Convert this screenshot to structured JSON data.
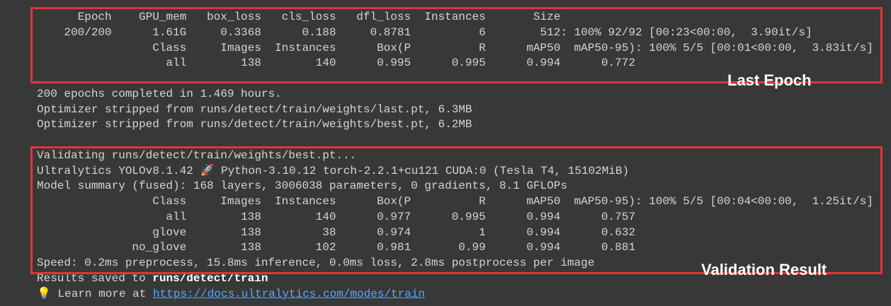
{
  "last_epoch": {
    "lines": [
      "      Epoch    GPU_mem   box_loss   cls_loss   dfl_loss  Instances       Size",
      "    200/200      1.61G     0.3368      0.188     0.8781          6        512: 100% 92/92 [00:23<00:00,  3.90it/s]",
      "                 Class     Images  Instances      Box(P          R      mAP50  mAP50-95): 100% 5/5 [00:01<00:00,  3.83it/s]",
      "                   all        138        140      0.995      0.995      0.994      0.772"
    ]
  },
  "summary": {
    "lines": [
      "200 epochs completed in 1.469 hours.",
      "Optimizer stripped from runs/detect/train/weights/last.pt, 6.3MB",
      "Optimizer stripped from runs/detect/train/weights/best.pt, 6.2MB"
    ]
  },
  "validation": {
    "lines": [
      "Validating runs/detect/train/weights/best.pt...",
      "Ultralytics YOLOv8.1.42 🚀 Python-3.10.12 torch-2.2.1+cu121 CUDA:0 (Tesla T4, 15102MiB)",
      "Model summary (fused): 168 layers, 3006038 parameters, 0 gradients, 8.1 GFLOPs",
      "                 Class     Images  Instances      Box(P          R      mAP50  mAP50-95): 100% 5/5 [00:04<00:00,  1.25it/s]",
      "                   all        138        140      0.977      0.995      0.994      0.757",
      "                 glove        138         38      0.974          1      0.994      0.632",
      "              no_glove        138        102      0.981       0.99      0.994      0.881",
      "Speed: 0.2ms preprocess, 15.8ms inference, 0.0ms loss, 2.8ms postprocess per image"
    ]
  },
  "results": {
    "prefix": "Results saved to ",
    "path": "runs/detect/train"
  },
  "learn": {
    "icon": "💡",
    "prefix": " Learn more at ",
    "link": "https://docs.ultralytics.com/modes/train"
  },
  "annotations": {
    "last_epoch": "Last Epoch",
    "validation": "Validation Result"
  }
}
